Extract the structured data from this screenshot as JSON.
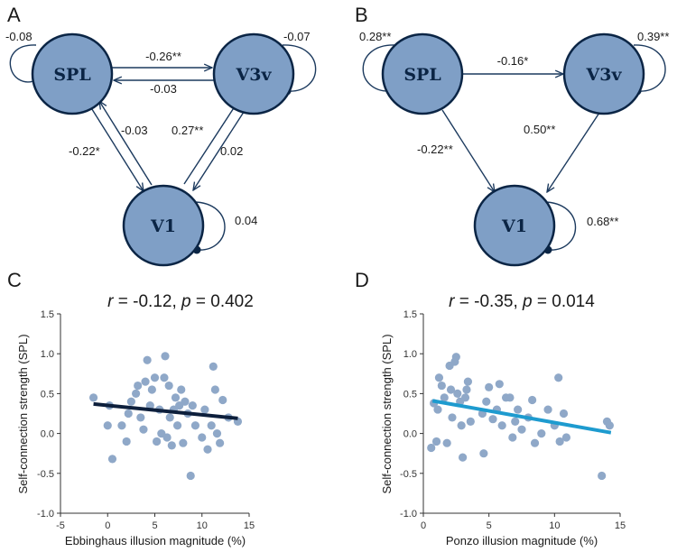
{
  "colors": {
    "node_fill": "#7f9fc6",
    "node_stroke": "#0b2545",
    "edge": "#1c3a5e",
    "point": "#8fa8c8",
    "fit_c": "#0d1f3c",
    "fit_d": "#1e9bcf"
  },
  "panels": {
    "A": {
      "letter": "A",
      "nodes": [
        {
          "id": "SPL",
          "label": "SPL",
          "self_weight": "-0.08"
        },
        {
          "id": "V3v",
          "label": "V3v",
          "self_weight": "-0.07"
        },
        {
          "id": "V1",
          "label": "V1",
          "self_weight": "0.04"
        }
      ],
      "edges": [
        {
          "from": "SPL",
          "to": "V3v",
          "weight": "-0.26**"
        },
        {
          "from": "V3v",
          "to": "SPL",
          "weight": "-0.03"
        },
        {
          "from": "SPL",
          "to": "V1",
          "weight": "-0.22*"
        },
        {
          "from": "V1",
          "to": "SPL",
          "weight": "-0.03"
        },
        {
          "from": "V1",
          "to": "V3v",
          "weight": "0.27**"
        },
        {
          "from": "V3v",
          "to": "V1",
          "weight": "0.02"
        }
      ]
    },
    "B": {
      "letter": "B",
      "nodes": [
        {
          "id": "SPL",
          "label": "SPL",
          "self_weight": "0.28**"
        },
        {
          "id": "V3v",
          "label": "V3v",
          "self_weight": "0.39**"
        },
        {
          "id": "V1",
          "label": "V1",
          "self_weight": "0.68**"
        }
      ],
      "edges": [
        {
          "from": "SPL",
          "to": "V3v",
          "weight": "-0.16*"
        },
        {
          "from": "SPL",
          "to": "V1",
          "weight": "-0.22**"
        },
        {
          "from": "V3v",
          "to": "V1",
          "weight": "0.50**"
        }
      ]
    }
  },
  "chart_data": [
    {
      "panel": "C",
      "type": "scatter",
      "title": "r = -0.12, p = 0.402",
      "title_r": "-0.12",
      "title_p": "0.402",
      "xlabel": "Ebbinghaus illusion magnitude (%)",
      "ylabel": "Self-connection strength (SPL)",
      "xlim": [
        -5,
        15
      ],
      "ylim": [
        -1.0,
        1.5
      ],
      "xticks": [
        "-5",
        "0",
        "5",
        "10",
        "15"
      ],
      "yticks": [
        "-1.0",
        "-0.5",
        "0.0",
        "0.5",
        "1.0",
        "1.5"
      ],
      "fit_line": {
        "x": [
          -1.5,
          13.8
        ],
        "y": [
          0.37,
          0.19
        ]
      },
      "points": [
        {
          "x": -1.5,
          "y": 0.45
        },
        {
          "x": 0.0,
          "y": 0.1
        },
        {
          "x": 0.2,
          "y": 0.35
        },
        {
          "x": 0.5,
          "y": -0.32
        },
        {
          "x": 1.5,
          "y": 0.1
        },
        {
          "x": 2.0,
          "y": -0.1
        },
        {
          "x": 2.2,
          "y": 0.25
        },
        {
          "x": 2.5,
          "y": 0.4
        },
        {
          "x": 3.0,
          "y": 0.5
        },
        {
          "x": 3.2,
          "y": 0.6
        },
        {
          "x": 3.5,
          "y": 0.2
        },
        {
          "x": 3.8,
          "y": 0.05
        },
        {
          "x": 4.0,
          "y": 0.65
        },
        {
          "x": 4.2,
          "y": 0.92
        },
        {
          "x": 4.5,
          "y": 0.35
        },
        {
          "x": 4.7,
          "y": 0.55
        },
        {
          "x": 5.0,
          "y": 0.7
        },
        {
          "x": 5.2,
          "y": -0.1
        },
        {
          "x": 5.5,
          "y": 0.3
        },
        {
          "x": 5.7,
          "y": 0.0
        },
        {
          "x": 6.0,
          "y": 0.7
        },
        {
          "x": 6.1,
          "y": 0.97
        },
        {
          "x": 6.3,
          "y": -0.05
        },
        {
          "x": 6.5,
          "y": 0.6
        },
        {
          "x": 6.6,
          "y": 0.2
        },
        {
          "x": 6.8,
          "y": -0.15
        },
        {
          "x": 7.0,
          "y": 0.3
        },
        {
          "x": 7.2,
          "y": 0.45
        },
        {
          "x": 7.4,
          "y": 0.1
        },
        {
          "x": 7.6,
          "y": 0.35
        },
        {
          "x": 7.8,
          "y": 0.55
        },
        {
          "x": 8.0,
          "y": -0.12
        },
        {
          "x": 8.2,
          "y": 0.4
        },
        {
          "x": 8.5,
          "y": 0.25
        },
        {
          "x": 8.8,
          "y": -0.53
        },
        {
          "x": 9.0,
          "y": 0.35
        },
        {
          "x": 9.3,
          "y": 0.1
        },
        {
          "x": 10.0,
          "y": -0.05
        },
        {
          "x": 10.3,
          "y": 0.3
        },
        {
          "x": 10.6,
          "y": -0.2
        },
        {
          "x": 11.0,
          "y": 0.1
        },
        {
          "x": 11.2,
          "y": 0.84
        },
        {
          "x": 11.4,
          "y": 0.55
        },
        {
          "x": 11.6,
          "y": 0.0
        },
        {
          "x": 11.9,
          "y": -0.12
        },
        {
          "x": 12.2,
          "y": 0.42
        },
        {
          "x": 12.8,
          "y": 0.2
        },
        {
          "x": 13.8,
          "y": 0.15
        }
      ]
    },
    {
      "panel": "D",
      "type": "scatter",
      "title": "r = -0.35, p = 0.014",
      "title_r": "-0.35",
      "title_p": "0.014",
      "xlabel": "Ponzo illusion magnitude (%)",
      "ylabel": "Self-connection strength (SPL)",
      "xlim": [
        0,
        15
      ],
      "ylim": [
        -1.0,
        1.5
      ],
      "xticks": [
        "0",
        "5",
        "10",
        "15"
      ],
      "yticks": [
        "-1.0",
        "-0.5",
        "0.0",
        "0.5",
        "1.0",
        "1.5"
      ],
      "fit_line": {
        "x": [
          0.7,
          14.3
        ],
        "y": [
          0.41,
          0.01
        ]
      },
      "points": [
        {
          "x": 0.6,
          "y": -0.18
        },
        {
          "x": 0.8,
          "y": 0.38
        },
        {
          "x": 1.0,
          "y": -0.1
        },
        {
          "x": 1.1,
          "y": 0.3
        },
        {
          "x": 1.2,
          "y": 0.7
        },
        {
          "x": 1.4,
          "y": 0.6
        },
        {
          "x": 1.6,
          "y": 0.45
        },
        {
          "x": 1.8,
          "y": -0.12
        },
        {
          "x": 2.0,
          "y": 0.85
        },
        {
          "x": 2.1,
          "y": 0.55
        },
        {
          "x": 2.2,
          "y": 0.2
        },
        {
          "x": 2.4,
          "y": 0.9
        },
        {
          "x": 2.5,
          "y": 0.96
        },
        {
          "x": 2.6,
          "y": 0.5
        },
        {
          "x": 2.8,
          "y": 0.4
        },
        {
          "x": 2.9,
          "y": 0.1
        },
        {
          "x": 3.0,
          "y": -0.3
        },
        {
          "x": 3.2,
          "y": 0.45
        },
        {
          "x": 3.3,
          "y": 0.55
        },
        {
          "x": 3.4,
          "y": 0.65
        },
        {
          "x": 3.6,
          "y": 0.15
        },
        {
          "x": 4.5,
          "y": 0.25
        },
        {
          "x": 4.6,
          "y": -0.25
        },
        {
          "x": 4.8,
          "y": 0.4
        },
        {
          "x": 5.0,
          "y": 0.58
        },
        {
          "x": 5.3,
          "y": 0.18
        },
        {
          "x": 5.6,
          "y": 0.3
        },
        {
          "x": 5.8,
          "y": 0.62
        },
        {
          "x": 6.0,
          "y": 0.1
        },
        {
          "x": 6.3,
          "y": 0.45
        },
        {
          "x": 6.6,
          "y": 0.45
        },
        {
          "x": 6.8,
          "y": -0.05
        },
        {
          "x": 7.0,
          "y": 0.15
        },
        {
          "x": 7.2,
          "y": 0.3
        },
        {
          "x": 7.5,
          "y": 0.05
        },
        {
          "x": 8.0,
          "y": 0.2
        },
        {
          "x": 8.3,
          "y": 0.42
        },
        {
          "x": 8.5,
          "y": -0.12
        },
        {
          "x": 9.0,
          "y": 0.0
        },
        {
          "x": 9.5,
          "y": 0.3
        },
        {
          "x": 10.0,
          "y": 0.1
        },
        {
          "x": 10.3,
          "y": 0.7
        },
        {
          "x": 10.4,
          "y": -0.1
        },
        {
          "x": 10.7,
          "y": 0.25
        },
        {
          "x": 10.9,
          "y": -0.05
        },
        {
          "x": 13.6,
          "y": -0.53
        },
        {
          "x": 14.0,
          "y": 0.15
        },
        {
          "x": 14.2,
          "y": 0.1
        }
      ]
    }
  ]
}
